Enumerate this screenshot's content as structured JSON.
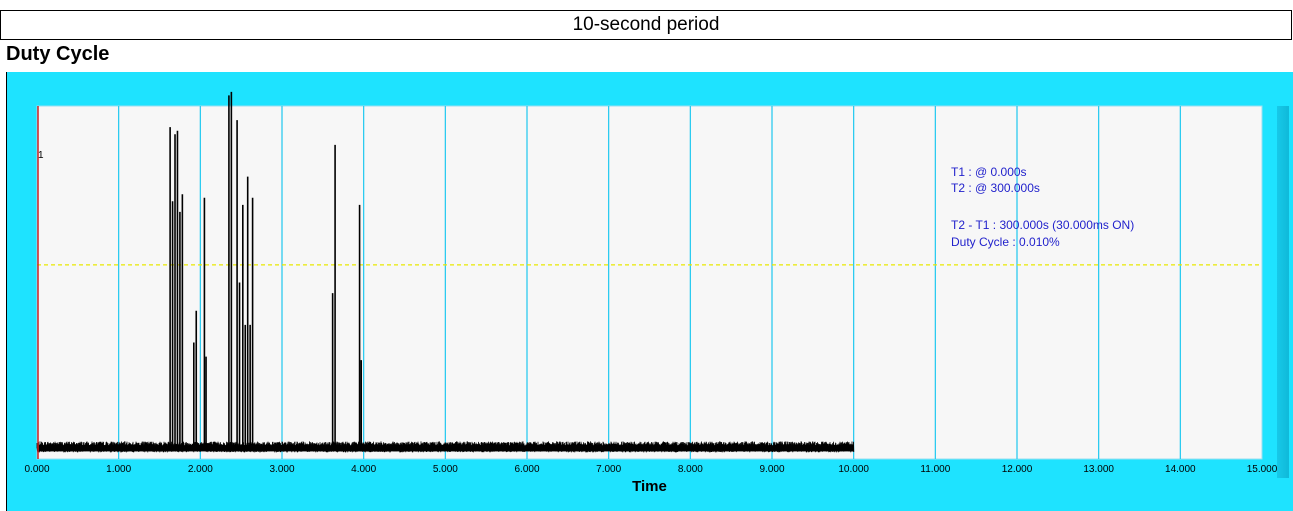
{
  "header": {
    "period_label": "10-second period"
  },
  "panel": {
    "title": "Duty Cycle"
  },
  "chart_data": {
    "type": "line",
    "xlabel": "Time",
    "ylabel": "",
    "xlim": [
      0,
      15
    ],
    "ylim": [
      0,
      1
    ],
    "x_ticks": [
      "0.000",
      "1.000",
      "2.000",
      "3.000",
      "4.000",
      "5.000",
      "6.000",
      "7.000",
      "8.000",
      "9.000",
      "10.000",
      "11.000",
      "12.000",
      "13.000",
      "14.000",
      "15.000"
    ],
    "threshold_level": 0.55,
    "noise_floor": 0.03,
    "noise_range": [
      0,
      10
    ],
    "spikes": [
      {
        "x": 1.63,
        "y": 0.94
      },
      {
        "x": 1.66,
        "y": 0.73
      },
      {
        "x": 1.69,
        "y": 0.92
      },
      {
        "x": 1.72,
        "y": 0.93
      },
      {
        "x": 1.75,
        "y": 0.7
      },
      {
        "x": 1.78,
        "y": 0.75
      },
      {
        "x": 1.92,
        "y": 0.33
      },
      {
        "x": 1.95,
        "y": 0.42
      },
      {
        "x": 2.05,
        "y": 0.74
      },
      {
        "x": 2.07,
        "y": 0.29
      },
      {
        "x": 2.35,
        "y": 1.03
      },
      {
        "x": 2.38,
        "y": 1.04
      },
      {
        "x": 2.45,
        "y": 0.96
      },
      {
        "x": 2.48,
        "y": 0.5
      },
      {
        "x": 2.52,
        "y": 0.72
      },
      {
        "x": 2.55,
        "y": 0.38
      },
      {
        "x": 2.58,
        "y": 0.8
      },
      {
        "x": 2.61,
        "y": 0.38
      },
      {
        "x": 2.64,
        "y": 0.74
      },
      {
        "x": 3.62,
        "y": 0.47
      },
      {
        "x": 3.65,
        "y": 0.89
      },
      {
        "x": 3.95,
        "y": 0.72
      },
      {
        "x": 3.97,
        "y": 0.28
      }
    ],
    "grid": true,
    "cursor_label": "1"
  },
  "annotations": {
    "t1": "T1 : @ 0.000s",
    "t2": "T2 : @ 300.000s",
    "diff": "T2 - T1 : 300.000s (30.000ms ON)",
    "duty": "Duty Cycle : 0.010%"
  },
  "colors": {
    "frame": "#1ee3ff",
    "plot_bg": "#f7f7f7",
    "grid": "#1ec8f0",
    "signal": "#000000",
    "threshold": "#e8e800",
    "cursor": "#cc2222",
    "annotation": "#2222cc"
  }
}
